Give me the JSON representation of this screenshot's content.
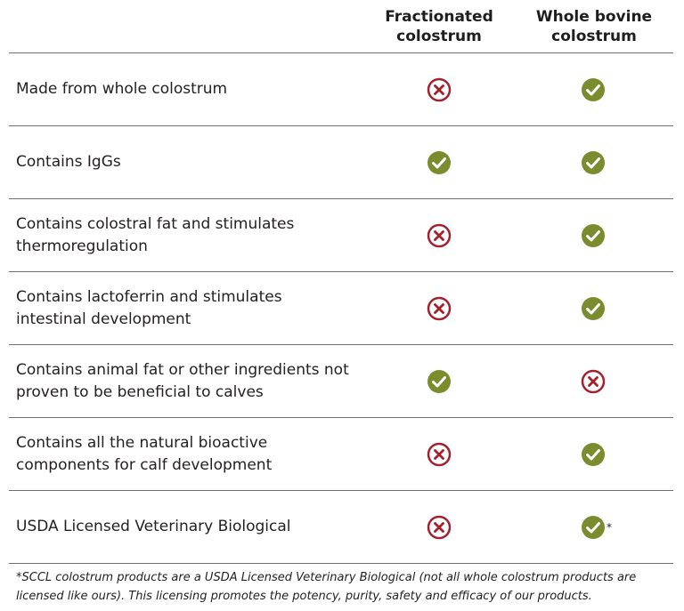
{
  "table": {
    "columns": [
      "Fractionated colostrum",
      "Whole bovine colostrum"
    ],
    "column_lines": [
      [
        "Fractionated",
        "colostrum"
      ],
      [
        "Whole bovine",
        "colostrum"
      ]
    ],
    "rows": [
      {
        "label": [
          "Made from whole colostrum"
        ],
        "fractionated": "no",
        "whole": "yes"
      },
      {
        "label": [
          "Contains IgGs"
        ],
        "fractionated": "yes",
        "whole": "yes"
      },
      {
        "label": [
          "Contains colostral fat and stimulates",
          "thermoregulation"
        ],
        "fractionated": "no",
        "whole": "yes"
      },
      {
        "label": [
          "Contains lactoferrin and stimulates",
          "intestinal development"
        ],
        "fractionated": "no",
        "whole": "yes"
      },
      {
        "label": [
          "Contains animal fat or other ingredients not",
          "proven to be beneficial to calves"
        ],
        "fractionated": "yes",
        "whole": "no"
      },
      {
        "label": [
          "Contains all the natural bioactive",
          "components for calf development"
        ],
        "fractionated": "no",
        "whole": "yes"
      },
      {
        "label": [
          "USDA Licensed Veterinary Biological"
        ],
        "fractionated": "no",
        "whole": "yes",
        "whole_note": "*"
      }
    ]
  },
  "footnote": [
    "*SCCL colostrum products are a USDA Licensed Veterinary Biological (not all whole colostrum products are",
    "licensed like ours). This licensing promotes the potency, purity, safety and efficacy of our products."
  ],
  "colors": {
    "check": "#7a8c2e",
    "cross": "#a3202d",
    "rule": "#6d6e70"
  },
  "icons": {
    "yes": "check-circle-icon",
    "no": "cross-circle-icon"
  }
}
